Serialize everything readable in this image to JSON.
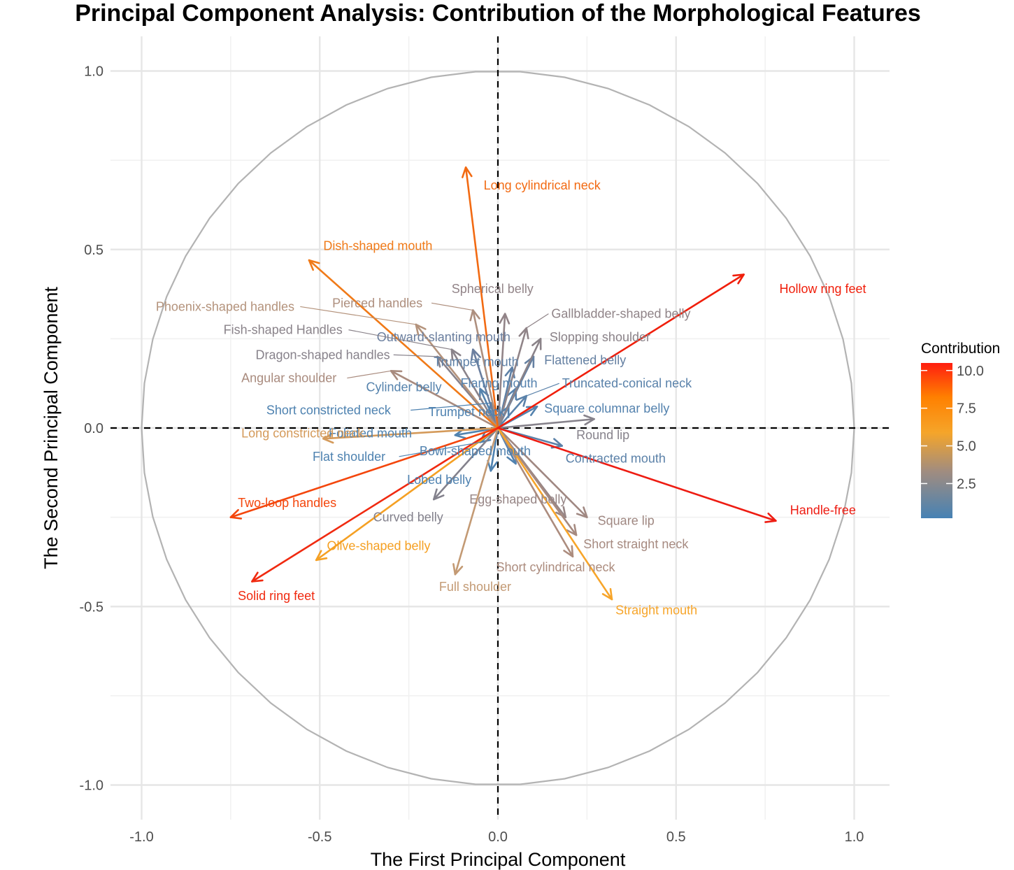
{
  "chart_data": {
    "type": "scatter",
    "subtype": "pca-variable-correlation-circle",
    "title": "Principal Component Analysis: Contribution of the Morphological Features",
    "xlabel": "The First Principal Component",
    "ylabel": "The Second Principal Component",
    "xlim": [
      -1.1,
      1.1
    ],
    "ylim": [
      -1.1,
      1.1
    ],
    "x_ticks": [
      -1.0,
      -0.5,
      0.0,
      0.5,
      1.0
    ],
    "x_tick_labels": [
      "-1.0",
      "-0.5",
      "0.0",
      "0.5",
      "1.0"
    ],
    "y_ticks": [
      -1.0,
      -0.5,
      0.0,
      0.5,
      1.0
    ],
    "y_tick_labels": [
      "-1.0",
      "-0.5",
      "0.0",
      "0.5",
      "1.0"
    ],
    "grid": true,
    "unit_circle": true,
    "reference_lines": [
      "x=0 dashed",
      "y=0 dashed"
    ],
    "legend": {
      "title": "Contribution",
      "placement": "right",
      "range": [
        0.2,
        10.5
      ],
      "ticks": [
        10.0,
        7.5,
        5.0,
        2.5
      ],
      "tick_labels": [
        "10.0",
        "7.5",
        "5.0",
        "2.5"
      ],
      "gradient_colors": [
        "#4682B4",
        "#A08C80",
        "#FFA500",
        "#FF0000"
      ]
    },
    "variables": [
      {
        "name": "Hollow ring feet",
        "x": 0.69,
        "y": 0.43,
        "contribution": 10.0,
        "color": "#F01E0A",
        "label_x": 0.79,
        "label_y": 0.39
      },
      {
        "name": "Handle-free",
        "x": 0.78,
        "y": -0.26,
        "contribution": 10.4,
        "color": "#EE1C12",
        "label_x": 0.82,
        "label_y": -0.23
      },
      {
        "name": "Solid ring feet",
        "x": -0.69,
        "y": -0.43,
        "contribution": 9.8,
        "color": "#F02A10",
        "label_x": -0.73,
        "label_y": -0.47
      },
      {
        "name": "Two-loop handles",
        "x": -0.75,
        "y": -0.25,
        "contribution": 8.8,
        "color": "#F4460C",
        "label_x": -0.73,
        "label_y": -0.21
      },
      {
        "name": "Long cylindrical neck",
        "x": -0.09,
        "y": 0.73,
        "contribution": 7.2,
        "color": "#F26A12",
        "label_x": -0.04,
        "label_y": 0.68
      },
      {
        "name": "Dish-shaped mouth",
        "x": -0.53,
        "y": 0.47,
        "contribution": 6.6,
        "color": "#F07A18",
        "label_x": -0.49,
        "label_y": 0.51
      },
      {
        "name": "Straight mouth",
        "x": 0.32,
        "y": -0.48,
        "contribution": 4.8,
        "color": "#F7A52A",
        "label_x": 0.33,
        "label_y": -0.51
      },
      {
        "name": "Olive-shaped belly",
        "x": -0.51,
        "y": -0.37,
        "contribution": 5.0,
        "color": "#F5A023",
        "label_x": -0.48,
        "label_y": -0.33
      },
      {
        "name": "Long constricted neck",
        "x": -0.49,
        "y": -0.03,
        "contribution": 3.6,
        "color": "#D49A5A",
        "label_x": -0.72,
        "label_y": -0.015
      },
      {
        "name": "Full shoulder",
        "x": -0.12,
        "y": -0.41,
        "contribution": 3.0,
        "color": "#C39A74",
        "label_x": -0.165,
        "label_y": -0.445
      },
      {
        "name": "Phoenix-shaped handles",
        "x": -0.23,
        "y": 0.29,
        "contribution": 2.6,
        "color": "#B4937C",
        "label_x": -0.96,
        "label_y": 0.34,
        "leader": true
      },
      {
        "name": "Pierced handles",
        "x": -0.07,
        "y": 0.33,
        "contribution": 2.4,
        "color": "#AE8F7E",
        "label_x": -0.465,
        "label_y": 0.35,
        "leader": true
      },
      {
        "name": "Angular shoulder",
        "x": -0.3,
        "y": 0.16,
        "contribution": 2.3,
        "color": "#A98B7E",
        "label_x": -0.72,
        "label_y": 0.14,
        "leader": true
      },
      {
        "name": "Short cylindrical neck",
        "x": 0.21,
        "y": -0.36,
        "contribution": 2.5,
        "color": "#AC8C7E",
        "label_x": -0.005,
        "label_y": -0.39
      },
      {
        "name": "Short straight neck",
        "x": 0.22,
        "y": -0.3,
        "contribution": 2.2,
        "color": "#A68A80",
        "label_x": 0.24,
        "label_y": -0.325
      },
      {
        "name": "Square lip",
        "x": 0.25,
        "y": -0.25,
        "contribution": 2.0,
        "color": "#A08882",
        "label_x": 0.28,
        "label_y": -0.26
      },
      {
        "name": "Egg-shaped belly",
        "x": 0.19,
        "y": -0.25,
        "contribution": 1.7,
        "color": "#978686",
        "label_x": -0.08,
        "label_y": -0.2
      },
      {
        "name": "Spherical belly",
        "x": 0.02,
        "y": 0.32,
        "contribution": 1.5,
        "color": "#928488",
        "label_x": -0.13,
        "label_y": 0.39
      },
      {
        "name": "Gallbladder-shaped belly",
        "x": 0.08,
        "y": 0.28,
        "contribution": 1.5,
        "color": "#908488",
        "label_x": 0.15,
        "label_y": 0.32,
        "leader": true
      },
      {
        "name": "Slopping shoulder",
        "x": 0.12,
        "y": 0.25,
        "contribution": 1.3,
        "color": "#8B8389",
        "label_x": 0.145,
        "label_y": 0.255
      },
      {
        "name": "Fish-shaped Handles",
        "x": -0.13,
        "y": 0.22,
        "contribution": 1.3,
        "color": "#8A838A",
        "label_x": -0.77,
        "label_y": 0.275,
        "leader": true
      },
      {
        "name": "Dragon-shaped handles",
        "x": -0.17,
        "y": 0.2,
        "contribution": 1.2,
        "color": "#87828B",
        "label_x": -0.68,
        "label_y": 0.205,
        "leader": true
      },
      {
        "name": "Round lip",
        "x": 0.27,
        "y": 0.025,
        "contribution": 1.2,
        "color": "#86828B",
        "label_x": 0.22,
        "label_y": -0.02
      },
      {
        "name": "Curved belly",
        "x": -0.18,
        "y": -0.2,
        "contribution": 1.1,
        "color": "#83818C",
        "label_x": -0.35,
        "label_y": -0.25
      },
      {
        "name": "Outward-slanting mouth",
        "x": -0.07,
        "y": 0.22,
        "contribution": 0.8,
        "color": "#6A7E9E",
        "label_x": -0.34,
        "label_y": 0.255
      },
      {
        "name": "Trumpet mouth",
        "x": 0.04,
        "y": 0.17,
        "contribution": 0.6,
        "color": "#5E80A6",
        "label_x": -0.18,
        "label_y": 0.185
      },
      {
        "name": "Flattened belly",
        "x": 0.1,
        "y": 0.2,
        "contribution": 0.7,
        "color": "#6580A2",
        "label_x": 0.13,
        "label_y": 0.19
      },
      {
        "name": "Truncated-conical neck",
        "x": 0.08,
        "y": 0.09,
        "contribution": 0.5,
        "color": "#5A82AA",
        "label_x": 0.18,
        "label_y": 0.125,
        "leader": true
      },
      {
        "name": "Flaring mouth",
        "x": 0.05,
        "y": 0.11,
        "contribution": 0.4,
        "color": "#5582AE",
        "label_x": -0.105,
        "label_y": 0.125
      },
      {
        "name": "Cylinder belly",
        "x": -0.05,
        "y": 0.11,
        "contribution": 0.4,
        "color": "#5683AD",
        "label_x": -0.37,
        "label_y": 0.115
      },
      {
        "name": "Square columnar belly",
        "x": 0.11,
        "y": 0.06,
        "contribution": 0.4,
        "color": "#5482AE",
        "label_x": 0.13,
        "label_y": 0.055
      },
      {
        "name": "Short constricted neck",
        "x": -0.02,
        "y": 0.07,
        "contribution": 0.3,
        "color": "#4E82B0",
        "label_x": -0.65,
        "label_y": 0.05,
        "leader": true
      },
      {
        "name": "Trumpet neck",
        "x": 0.03,
        "y": 0.06,
        "contribution": 0.3,
        "color": "#4F82B0",
        "label_x": -0.195,
        "label_y": 0.045
      },
      {
        "name": "Foliated mouth",
        "x": -0.12,
        "y": -0.02,
        "contribution": 0.3,
        "color": "#5183AF",
        "label_x": -0.475,
        "label_y": -0.015
      },
      {
        "name": "Contracted mouth",
        "x": 0.18,
        "y": -0.05,
        "contribution": 0.6,
        "color": "#5B81A8",
        "label_x": 0.19,
        "label_y": -0.085
      },
      {
        "name": "Flat shoulder",
        "x": -0.05,
        "y": -0.04,
        "contribution": 0.3,
        "color": "#4E82B0",
        "label_x": -0.52,
        "label_y": -0.08,
        "leader": true
      },
      {
        "name": "Bowl-shaped mouth",
        "x": 0.05,
        "y": -0.1,
        "contribution": 0.3,
        "color": "#5182AF",
        "label_x": -0.22,
        "label_y": -0.065
      },
      {
        "name": "Lobed belly",
        "x": -0.02,
        "y": -0.12,
        "contribution": 0.3,
        "color": "#4F82B0",
        "label_x": -0.255,
        "label_y": -0.145
      }
    ]
  }
}
